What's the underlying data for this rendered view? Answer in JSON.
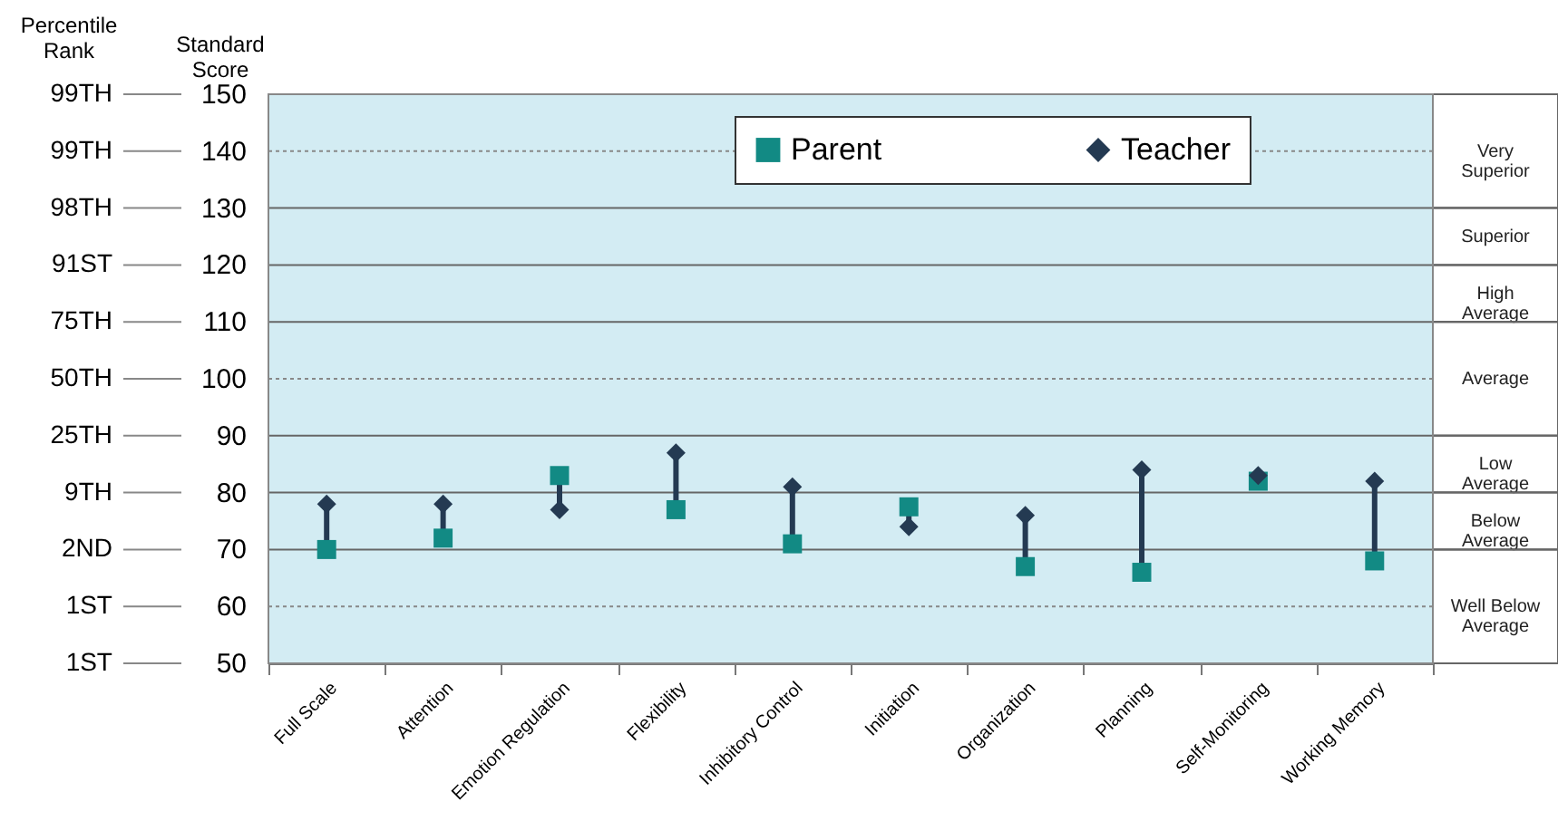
{
  "chart_data": {
    "type": "scatter",
    "ylabel": "Standard Score",
    "y2label": "Percentile Rank",
    "categories": [
      "Full Scale",
      "Attention",
      "Emotion Regulation",
      "Flexibility",
      "Inhibitory Control",
      "Initiation",
      "Organization",
      "Planning",
      "Self-Monitoring",
      "Working Memory"
    ],
    "series": [
      {
        "name": "Parent",
        "color": "#128a84",
        "marker": "square",
        "values": [
          70,
          72,
          83,
          77,
          71,
          77.5,
          67,
          66,
          82,
          68
        ]
      },
      {
        "name": "Teacher",
        "color": "#243a52",
        "marker": "diamond",
        "values": [
          78,
          78,
          77,
          87,
          81,
          74,
          76,
          84,
          83,
          82
        ]
      }
    ],
    "ylim": [
      50,
      150
    ],
    "yticks": [
      50,
      60,
      70,
      80,
      90,
      100,
      110,
      120,
      130,
      140,
      150
    ],
    "annotations": [
      "1ST",
      "1ST",
      "2ND",
      "9TH",
      "25TH",
      "50TH",
      "75TH",
      "91ST",
      "98TH",
      "99TH",
      "99TH"
    ],
    "bands": [
      {
        "axis": "y",
        "from": 130,
        "to": 150,
        "label": "Very Superior",
        "color": "#d3ecf3"
      },
      {
        "axis": "y",
        "from": 120,
        "to": 130,
        "label": "Superior",
        "color": "#d3ecf3"
      },
      {
        "axis": "y",
        "from": 110,
        "to": 120,
        "label": "High Average",
        "color": "#d3ecf3"
      },
      {
        "axis": "y",
        "from": 90,
        "to": 110,
        "label": "Average",
        "color": "#d3ecf3"
      },
      {
        "axis": "y",
        "from": 80,
        "to": 90,
        "label": "Low Average",
        "color": "#d3ecf3"
      },
      {
        "axis": "y",
        "from": 70,
        "to": 80,
        "label": "Below Average",
        "color": "#d3ecf3"
      },
      {
        "axis": "y",
        "from": 50,
        "to": 70,
        "label": "Well Below Average",
        "color": "#d3ecf3"
      }
    ],
    "grid": "y",
    "legend": "top right"
  }
}
